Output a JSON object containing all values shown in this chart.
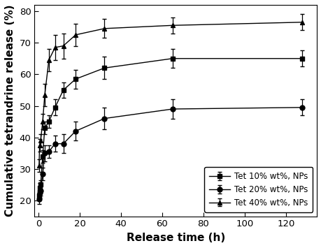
{
  "title": "",
  "xlabel": "Release time (h)",
  "ylabel": "Cumulative tetrandrine release (%)",
  "xlim": [
    -2,
    135
  ],
  "ylim": [
    15,
    82
  ],
  "xticks": [
    0,
    20,
    40,
    60,
    80,
    100,
    120
  ],
  "yticks": [
    20,
    30,
    40,
    50,
    60,
    70,
    80
  ],
  "series": [
    {
      "label": "Tet 10% wt%, NPs",
      "marker": "s",
      "x": [
        0.25,
        0.5,
        1,
        2,
        3,
        5,
        8,
        12,
        18,
        32,
        65,
        128
      ],
      "y": [
        21.5,
        24.0,
        25.0,
        34.0,
        43.0,
        45.0,
        49.5,
        55.0,
        58.5,
        62.0,
        65.0,
        65.0
      ],
      "yerr": [
        1.5,
        1.5,
        1.5,
        2.0,
        2.0,
        2.0,
        2.5,
        2.5,
        3.0,
        3.5,
        3.0,
        2.5
      ]
    },
    {
      "label": "Tet 20% wt%, NPs",
      "marker": "o",
      "x": [
        0.25,
        0.5,
        1,
        2,
        3,
        5,
        8,
        12,
        18,
        32,
        65,
        128
      ],
      "y": [
        20.5,
        22.5,
        23.0,
        28.5,
        35.0,
        35.5,
        38.0,
        38.0,
        42.0,
        46.0,
        49.0,
        49.5
      ],
      "yerr": [
        1.5,
        1.5,
        1.5,
        2.0,
        2.5,
        2.0,
        2.5,
        3.0,
        3.0,
        3.5,
        3.0,
        2.5
      ]
    },
    {
      "label": "Tet 40% wt%, NPs",
      "marker": "^",
      "x": [
        0.25,
        0.5,
        1,
        2,
        3,
        5,
        8,
        12,
        18,
        32,
        65,
        128
      ],
      "y": [
        31.0,
        37.5,
        39.0,
        45.0,
        53.5,
        64.5,
        68.5,
        69.0,
        72.5,
        74.5,
        75.5,
        76.5
      ],
      "yerr": [
        2.0,
        2.0,
        2.0,
        2.5,
        3.5,
        3.5,
        4.0,
        4.0,
        3.5,
        3.0,
        2.5,
        2.5
      ]
    }
  ],
  "line_color": "#000000",
  "line_style": "-",
  "line_width": 1.0,
  "marker_size": 5,
  "capsize": 2.5,
  "elinewidth": 0.9,
  "legend_loc": "lower right",
  "legend_fontsize": 8.5,
  "axis_label_fontsize": 11,
  "tick_fontsize": 9.5,
  "bg_color": "#ffffff"
}
